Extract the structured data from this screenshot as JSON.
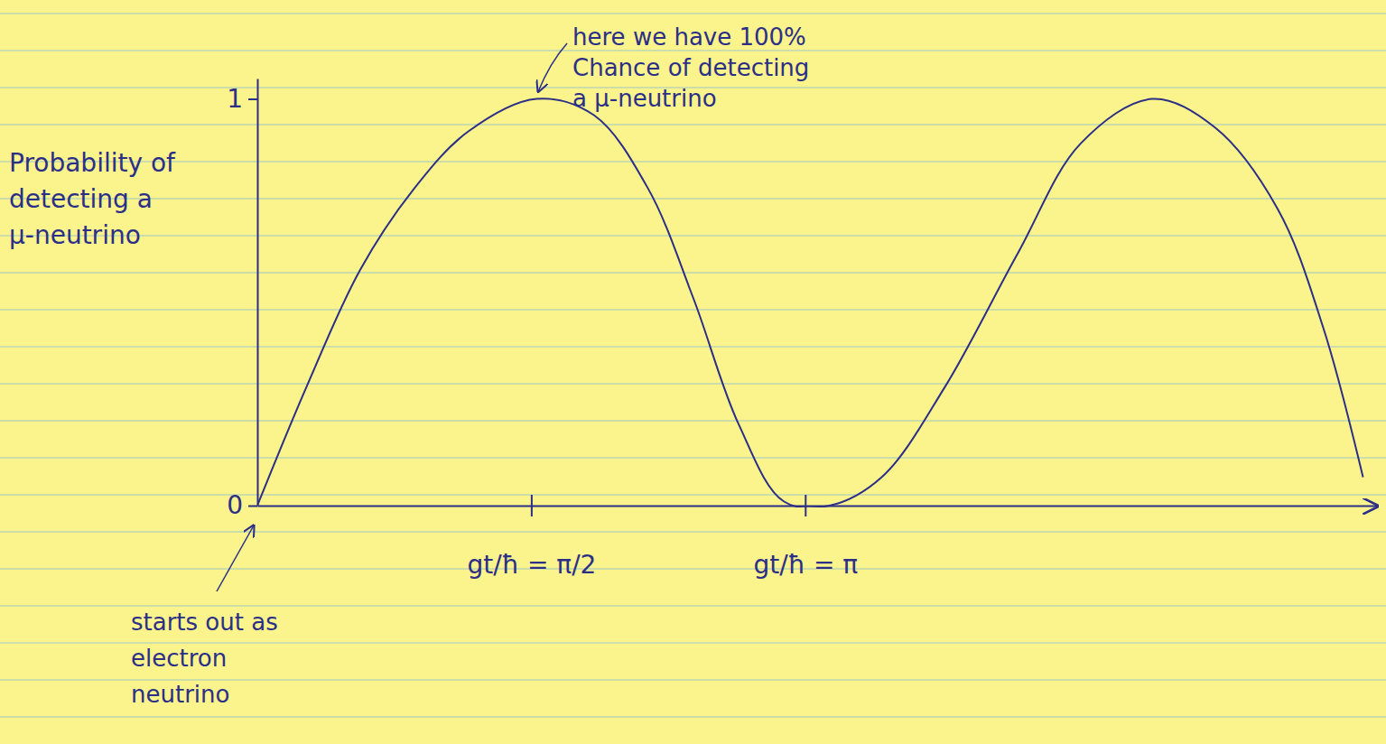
{
  "chart_data": {
    "type": "line",
    "y_label": "Probability of detecting a μ-neutrino",
    "x": [
      0,
      0.28,
      0.59,
      0.9,
      1.21,
      1.6,
      1.93,
      2.24,
      2.5,
      2.76,
      3.02,
      3.28,
      3.58,
      3.94,
      4.36,
      4.72,
      5.13,
      5.49,
      5.85,
      6.11,
      6.34
    ],
    "values": [
      0,
      0.29,
      0.58,
      0.78,
      0.92,
      1.0,
      0.96,
      0.78,
      0.51,
      0.2,
      0.01,
      0,
      0.07,
      0.29,
      0.62,
      0.89,
      1.0,
      0.93,
      0.73,
      0.44,
      0.07
    ],
    "color": "#2b2f86",
    "xlim": [
      0,
      6.42
    ],
    "xticks": [
      {
        "value": 1.5708,
        "label": "gt/ħ = π/2"
      },
      {
        "value": 3.1416,
        "label": "gt/ħ = π"
      }
    ],
    "ylim": [
      0,
      1.05
    ],
    "yticks": [
      0,
      1
    ],
    "grid": false,
    "annotations": [
      "here we have 100% Chance of detecting a μ-neutrino",
      "starts out as electron neutrino"
    ]
  }
}
